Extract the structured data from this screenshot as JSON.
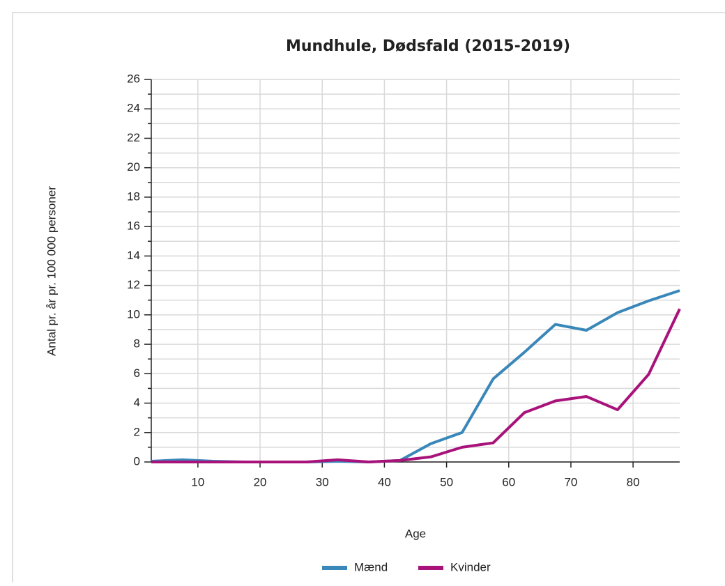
{
  "chart_data": {
    "type": "line",
    "title": "Mundhule, Dødsfald (2015-2019)",
    "x_label": "Age",
    "y_label": "Antal pr. år pr. 100 000 personer",
    "x": [
      2.5,
      7.5,
      12.5,
      17.5,
      22.5,
      27.5,
      32.5,
      37.5,
      42.5,
      47.5,
      52.5,
      57.5,
      62.5,
      67.5,
      72.5,
      77.5,
      82.5,
      87.5
    ],
    "series": [
      {
        "name": "Mænd",
        "color": "#3a87b9",
        "values": [
          0.05,
          0.15,
          0.05,
          0,
          0,
          0,
          0.05,
          0,
          0.1,
          1.25,
          2.0,
          5.65,
          7.45,
          9.35,
          8.95,
          10.15,
          10.95,
          11.65
        ]
      },
      {
        "name": "Kvinder",
        "color": "#a8127a",
        "values": [
          0,
          0,
          0,
          0,
          0,
          0,
          0.15,
          0,
          0.1,
          0.35,
          1.0,
          1.3,
          3.35,
          4.15,
          4.45,
          3.55,
          5.95,
          10.4
        ]
      }
    ],
    "xlim": [
      2.5,
      87.5
    ],
    "xticks": [
      10,
      20,
      30,
      40,
      50,
      60,
      70,
      80
    ],
    "ylim": [
      0,
      26
    ],
    "yticks": [
      0,
      2,
      4,
      6,
      8,
      10,
      12,
      14,
      16,
      18,
      20,
      22,
      24,
      26
    ],
    "minor_yticks": [
      1,
      3,
      5,
      7,
      9,
      11,
      13,
      15,
      17,
      19,
      21,
      23,
      25
    ],
    "grid": true,
    "legend": "bottom"
  }
}
